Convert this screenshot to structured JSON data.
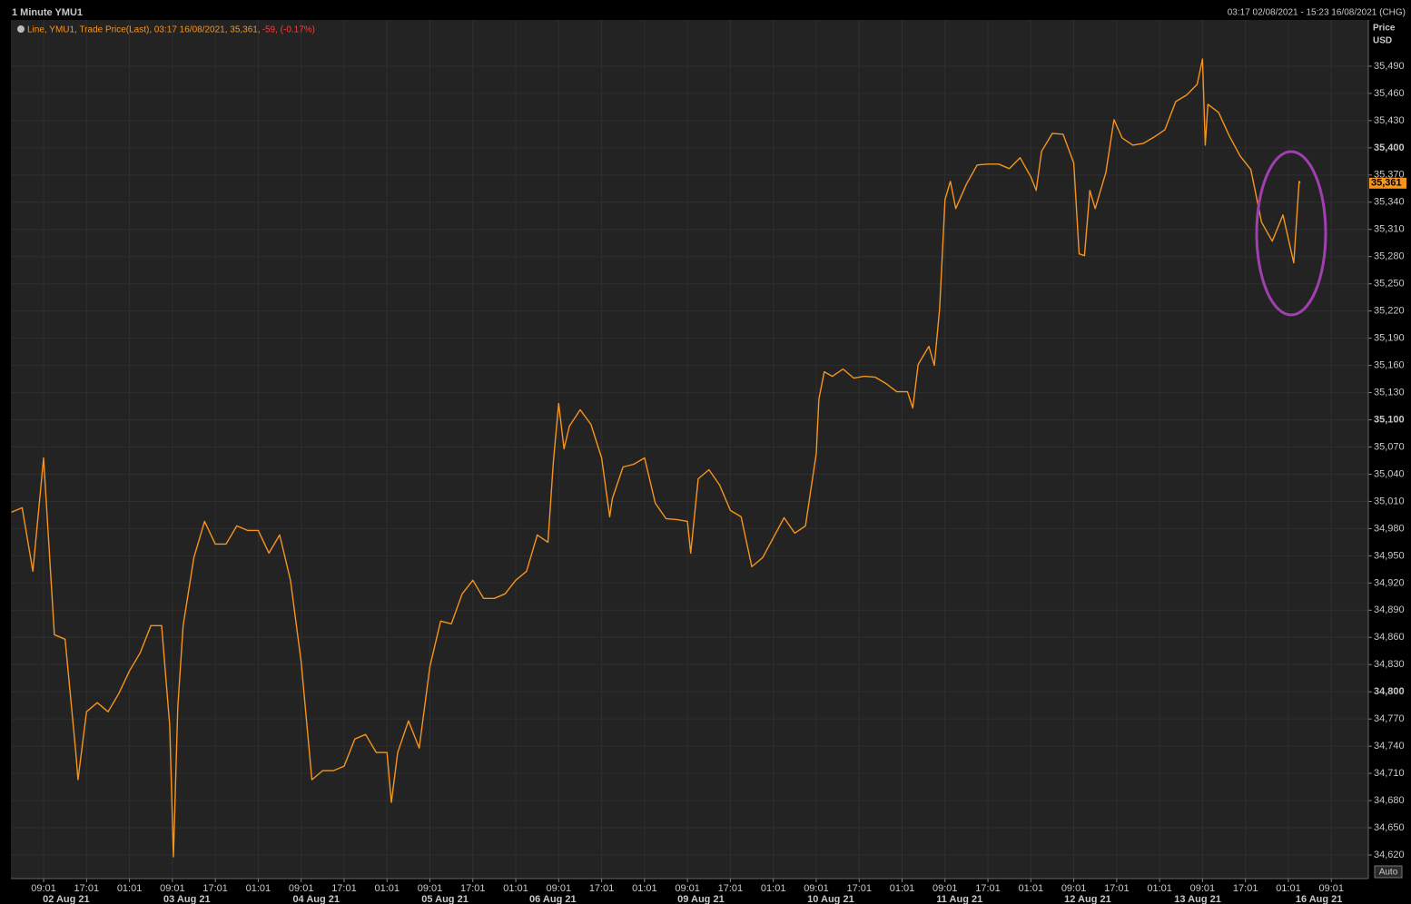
{
  "header": {
    "title": "1 Minute YMU1",
    "range": "03:17 02/08/2021 - 15:23 16/08/2021 (CHG)"
  },
  "legend": {
    "text": "Line, YMU1, Trade Price(Last), 03:17 16/08/2021, 35,361, ",
    "change": "-59, (-0.17%)"
  },
  "axis_button": "Auto",
  "chart_data": {
    "type": "line",
    "y_label": [
      "Price",
      "USD"
    ],
    "x": [
      -6,
      -4,
      -2,
      0,
      2,
      4,
      6,
      6.4,
      8,
      10,
      12,
      14,
      16,
      18,
      20,
      22,
      23.5,
      24.2,
      25,
      26,
      28,
      30,
      32,
      34,
      36,
      38,
      40,
      42,
      44,
      46,
      48,
      50,
      52,
      54,
      56,
      58,
      60,
      62,
      64,
      64.8,
      66,
      68,
      70,
      72,
      74,
      76,
      78,
      80,
      82,
      84,
      86,
      88,
      90,
      92,
      94,
      95,
      96,
      97,
      98,
      100,
      102,
      104,
      105.5,
      106,
      108,
      110,
      112,
      114,
      116,
      118,
      120,
      120.6,
      122,
      124,
      126,
      128,
      130,
      132,
      134,
      136,
      138,
      140,
      142,
      144,
      144.5,
      145.5,
      147,
      149,
      151,
      153,
      155,
      157,
      159,
      161,
      162,
      163,
      165,
      166,
      167,
      168,
      169,
      170,
      172,
      174,
      176,
      178,
      180,
      182,
      184,
      185,
      186,
      188,
      190,
      192,
      193,
      194,
      195,
      196,
      198,
      199.5,
      201,
      203,
      205,
      207,
      209,
      211,
      213,
      215,
      216,
      216.5,
      217,
      219,
      221,
      223,
      225,
      227,
      229,
      231,
      233,
      234,
      234.2
    ],
    "series": [
      {
        "name": "YMU1",
        "color": "#f7941d",
        "values": [
          34998,
          35003,
          34933,
          35058,
          34863,
          34858,
          34733,
          34703,
          34778,
          34788,
          34778,
          34798,
          34823,
          34843,
          34873,
          34873,
          34763,
          34618,
          34783,
          34873,
          34948,
          34988,
          34963,
          34963,
          34983,
          34978,
          34978,
          34953,
          34973,
          34923,
          34833,
          34703,
          34713,
          34713,
          34718,
          34748,
          34753,
          34733,
          34733,
          34678,
          34733,
          34768,
          34738,
          34828,
          34878,
          34875,
          34908,
          34923,
          34903,
          34903,
          34908,
          34923,
          34933,
          34973,
          34965,
          35053,
          35118,
          35068,
          35093,
          35111,
          35095,
          35058,
          34993,
          35013,
          35048,
          35051,
          35058,
          35008,
          34991,
          34990,
          34988,
          34953,
          35035,
          35045,
          35028,
          35000,
          34993,
          34938,
          34948,
          34970,
          34992,
          34975,
          34983,
          35063,
          35123,
          35153,
          35148,
          35156,
          35146,
          35148,
          35147,
          35140,
          35131,
          35131,
          35113,
          35161,
          35181,
          35160,
          35223,
          35343,
          35363,
          35333,
          35360,
          35381,
          35382,
          35382,
          35377,
          35389,
          35368,
          35353,
          35396,
          35416,
          35415,
          35383,
          35283,
          35281,
          35353,
          35333,
          35373,
          35431,
          35411,
          35403,
          35405,
          35412,
          35420,
          35451,
          35458,
          35470,
          35498,
          35403,
          35448,
          35439,
          35413,
          35391,
          35376,
          35318,
          35297,
          35326,
          35273,
          35363,
          35361
        ]
      }
    ],
    "last_price": {
      "value": 35361,
      "label": "35,361"
    },
    "xlim": [
      -6.1,
      246.9
    ],
    "ylim": [
      34594,
      35541
    ],
    "yticks": [
      {
        "value": 34620,
        "label": "34,620"
      },
      {
        "value": 34650,
        "label": "34,650"
      },
      {
        "value": 34680,
        "label": "34,680"
      },
      {
        "value": 34710,
        "label": "34,710"
      },
      {
        "value": 34740,
        "label": "34,740"
      },
      {
        "value": 34770,
        "label": "34,770"
      },
      {
        "value": 34800,
        "label": "34,800"
      },
      {
        "value": 34830,
        "label": "34,830"
      },
      {
        "value": 34860,
        "label": "34,860"
      },
      {
        "value": 34890,
        "label": "34,890"
      },
      {
        "value": 34920,
        "label": "34,920"
      },
      {
        "value": 34950,
        "label": "34,950"
      },
      {
        "value": 34980,
        "label": "34,980"
      },
      {
        "value": 35010,
        "label": "35,010"
      },
      {
        "value": 35040,
        "label": "35,040"
      },
      {
        "value": 35070,
        "label": "35,070"
      },
      {
        "value": 35100,
        "label": "35,100"
      },
      {
        "value": 35130,
        "label": "35,130"
      },
      {
        "value": 35160,
        "label": "35,160"
      },
      {
        "value": 35190,
        "label": "35,190"
      },
      {
        "value": 35220,
        "label": "35,220"
      },
      {
        "value": 35250,
        "label": "35,250"
      },
      {
        "value": 35280,
        "label": "35,280"
      },
      {
        "value": 35310,
        "label": "35,310"
      },
      {
        "value": 35340,
        "label": "35,340"
      },
      {
        "value": 35370,
        "label": "35,370"
      },
      {
        "value": 35400,
        "label": "35,400"
      },
      {
        "value": 35430,
        "label": "35,430"
      },
      {
        "value": 35460,
        "label": "35,460"
      },
      {
        "value": 35490,
        "label": "35,490"
      }
    ],
    "xticks": [
      {
        "value": 0,
        "label": "09:01"
      },
      {
        "value": 8,
        "label": "17:01"
      },
      {
        "value": 16,
        "label": "01:01"
      },
      {
        "value": 24,
        "label": "09:01"
      },
      {
        "value": 32,
        "label": "17:01"
      },
      {
        "value": 40,
        "label": "01:01"
      },
      {
        "value": 48,
        "label": "09:01"
      },
      {
        "value": 56,
        "label": "17:01"
      },
      {
        "value": 64,
        "label": "01:01"
      },
      {
        "value": 72,
        "label": "09:01"
      },
      {
        "value": 80,
        "label": "17:01"
      },
      {
        "value": 88,
        "label": "01:01"
      },
      {
        "value": 96,
        "label": "09:01"
      },
      {
        "value": 104,
        "label": "17:01"
      },
      {
        "value": 112,
        "label": "01:01"
      },
      {
        "value": 120,
        "label": "09:01"
      },
      {
        "value": 128,
        "label": "17:01"
      },
      {
        "value": 136,
        "label": "01:01"
      },
      {
        "value": 144,
        "label": "09:01"
      },
      {
        "value": 152,
        "label": "17:01"
      },
      {
        "value": 160,
        "label": "01:01"
      },
      {
        "value": 168,
        "label": "09:01"
      },
      {
        "value": 176,
        "label": "17:01"
      },
      {
        "value": 184,
        "label": "01:01"
      },
      {
        "value": 192,
        "label": "09:01"
      },
      {
        "value": 200,
        "label": "17:01"
      },
      {
        "value": 208,
        "label": "01:01"
      },
      {
        "value": 216,
        "label": "09:01"
      },
      {
        "value": 224,
        "label": "17:01"
      },
      {
        "value": 232,
        "label": "01:01"
      },
      {
        "value": 240,
        "label": "09:01"
      }
    ],
    "date_labels": [
      {
        "value": 4.2,
        "label": "02 Aug 21"
      },
      {
        "value": 26.7,
        "label": "03 Aug 21"
      },
      {
        "value": 50.8,
        "label": "04 Aug 21"
      },
      {
        "value": 74.8,
        "label": "05 Aug 21"
      },
      {
        "value": 94.9,
        "label": "06 Aug 21"
      },
      {
        "value": 122.5,
        "label": "09 Aug 21"
      },
      {
        "value": 146.7,
        "label": "10 Aug 21"
      },
      {
        "value": 170.7,
        "label": "11 Aug 21"
      },
      {
        "value": 194.6,
        "label": "12 Aug 21"
      },
      {
        "value": 215.1,
        "label": "13 Aug 21"
      },
      {
        "value": 237.7,
        "label": "16 Aug 21"
      }
    ],
    "grid": true
  }
}
